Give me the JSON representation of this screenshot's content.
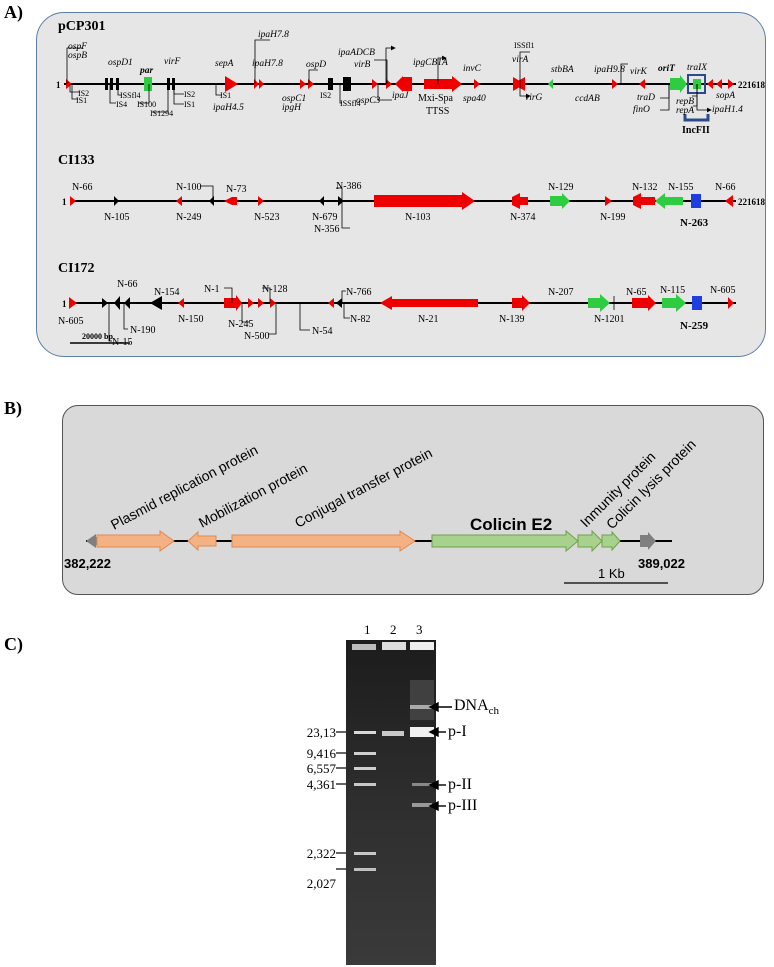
{
  "panels": {
    "a": "A)",
    "b": "B)",
    "c": "C)"
  },
  "maps": {
    "pcp301": {
      "name": "pCP301",
      "start": "1",
      "end": "221618",
      "feature_labels": [
        "ospF",
        "ospB",
        "IS2",
        "IS1",
        "ospD1",
        "IS4",
        "ISSfl4",
        "par",
        "IS100",
        "virF",
        "IS1294",
        "IS2",
        "IS1",
        "sepA",
        "IS1",
        "ipaH7.8",
        "ipaH4.5",
        "ipaH7.8",
        "ospD",
        "ospC1",
        "ipgH",
        "IS2",
        "ISSfl4",
        "ipaADCB",
        "virB",
        "ospC3",
        "ipaJ",
        "ipgCB1A",
        "Mxi-Spa",
        "TTSS",
        "invC",
        "spa40",
        "virA",
        "virG",
        "ISSfl1",
        "stbBA",
        "ipaH9.8",
        "ccdAB",
        "virK",
        "oriT",
        "traIX",
        "traD",
        "finO",
        "repB",
        "repA",
        "ipaH1.4",
        "sopA"
      ],
      "incfii": "IncFII"
    },
    "ci133": {
      "name": "CI133",
      "start": "1",
      "end": "221618",
      "labels": [
        "N-66",
        "N-105",
        "N-100",
        "N-249",
        "N-73",
        "N-523",
        "N-679",
        "N-386",
        "N-356",
        "N-103",
        "N-374",
        "N-129",
        "N-199",
        "N-132",
        "N-155",
        "N-263",
        "N-66"
      ]
    },
    "ci172": {
      "name": "CI172",
      "start": "1",
      "end": "221618",
      "labels": [
        "N-605",
        "N-66",
        "N-15",
        "N-190",
        "N-154",
        "N-150",
        "N-1",
        "N-245",
        "N-128",
        "N-500",
        "N-54",
        "N-766",
        "N-82",
        "N-21",
        "N-139",
        "N-207",
        "N-1201",
        "N-65",
        "N-115",
        "N-259",
        "N-605"
      ]
    },
    "scale_bar": "20000 bp"
  },
  "panel_b": {
    "left_coord": "382,222",
    "right_coord": "389,022",
    "genes": [
      "Plasmid replication protein",
      "Mobilization protein",
      "Conjugal transfer protein",
      "Colicin E2",
      "Inmunity protein",
      "Colicin lysis protein"
    ],
    "scale": "1 Kb",
    "colors": {
      "orange": "#f4b183",
      "green": "#a9d18e",
      "grey": "#7f7f7f"
    }
  },
  "panel_c": {
    "lanes": [
      "1",
      "2",
      "3"
    ],
    "ladder": [
      "23,13",
      "9,416",
      "6,557",
      "4,361",
      "2,322",
      "2,027"
    ],
    "bands": [
      "DNA",
      "ch",
      "p-I",
      "p-II",
      "p-III"
    ]
  }
}
